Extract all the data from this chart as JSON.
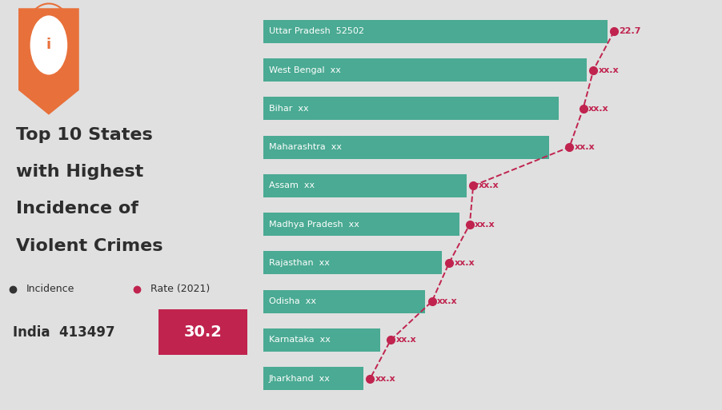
{
  "states": [
    "Uttar Pradesh",
    "West Bengal",
    "Bihar",
    "Maharashtra",
    "Assam",
    "Madhya Pradesh",
    "Rajasthan",
    "Odisha",
    "Karnataka",
    "Jharkhand"
  ],
  "incidence_labels": [
    "52502",
    "xx",
    "xx",
    "xx",
    "xx",
    "xx",
    "xx",
    "xx",
    "xx",
    "xx"
  ],
  "rate_labels": [
    "22.7",
    "xx.x",
    "xx.x",
    "xx.x",
    "xx.x",
    "xx.x",
    "xx.x",
    "xx.x",
    "xx.x",
    "xx.x"
  ],
  "bar_values": [
    10.0,
    9.4,
    8.6,
    8.3,
    5.9,
    5.7,
    5.2,
    4.7,
    3.4,
    2.9
  ],
  "rate_values": [
    10.2,
    9.6,
    9.3,
    8.9,
    6.1,
    6.0,
    5.4,
    4.9,
    3.7,
    3.1
  ],
  "bar_color": "#4aaa93",
  "bg_color": "#e0e0e0",
  "rate_dot_color": "#c0234e",
  "incidence_dot_color": "#333333",
  "rate_line_color": "#c0234e",
  "title_lines": [
    "Top 10 States",
    "with Highest",
    "Incidence of",
    "Violent Crimes"
  ],
  "india_label": "India  413497",
  "india_rate": "30.2",
  "india_rate_bg": "#c0234e",
  "orange_color": "#e8703a",
  "bar_height": 0.6,
  "xlim_max": 12.5,
  "title_fontsize": 16,
  "bar_label_fontsize": 8,
  "rate_label_fontsize": 8
}
